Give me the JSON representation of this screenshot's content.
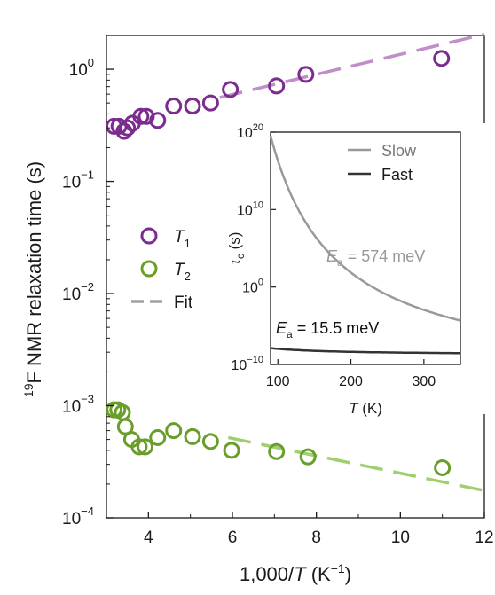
{
  "chart_data": [
    {
      "type": "scatter",
      "xlabel_parts": [
        "1,000/",
        "T",
        " (K",
        "−1",
        ")"
      ],
      "ylabel_parts": [
        "19",
        "F NMR relaxation time (s)"
      ],
      "x_range": [
        3,
        12
      ],
      "y_range": [
        0.0001,
        2
      ],
      "y_scale": "log",
      "x_ticks": [
        4,
        6,
        8,
        10,
        12
      ],
      "x_tick_labels": [
        "4",
        "6",
        "8",
        "10",
        "12"
      ],
      "y_ticks": [
        {
          "value": 1,
          "base": "10",
          "exp": "0"
        },
        {
          "value": 0.1,
          "base": "10",
          "exp": "−1"
        },
        {
          "value": 0.01,
          "base": "10",
          "exp": "−2"
        },
        {
          "value": 0.001,
          "base": "10",
          "exp": "−3"
        },
        {
          "value": 0.0001,
          "base": "10",
          "exp": "−4"
        }
      ],
      "legend": {
        "placement": "middle-left",
        "entries": [
          {
            "label": "T",
            "sub": "1",
            "color": "#7b2d8e",
            "marker": "circle"
          },
          {
            "label": "T",
            "sub": "2",
            "color": "#6a9e2a",
            "marker": "circle"
          },
          {
            "label": "Fit",
            "color": "#a0a0a0",
            "marker": "dashed-line"
          }
        ]
      },
      "series": [
        {
          "marker_color": "#7b2d8e",
          "points": [
            [
              3.18,
              0.31
            ],
            [
              3.3,
              0.31
            ],
            [
              3.42,
              0.28
            ],
            [
              3.5,
              0.3
            ],
            [
              3.62,
              0.33
            ],
            [
              3.82,
              0.38
            ],
            [
              3.95,
              0.38
            ],
            [
              4.22,
              0.35
            ],
            [
              4.6,
              0.47
            ],
            [
              5.05,
              0.47
            ],
            [
              5.48,
              0.5
            ],
            [
              5.95,
              0.66
            ],
            [
              7.05,
              0.71
            ],
            [
              7.75,
              0.9
            ],
            [
              10.98,
              1.25
            ]
          ],
          "fit": {
            "color": "#c08fc8",
            "x": [
              5.7,
              12
            ],
            "y": [
              0.56,
              2.05
            ]
          }
        },
        {
          "marker_color": "#6a9e2a",
          "points": [
            [
              3.18,
              0.00092
            ],
            [
              3.27,
              0.00092
            ],
            [
              3.38,
              0.00087
            ],
            [
              3.45,
              0.00065
            ],
            [
              3.6,
              0.0005
            ],
            [
              3.78,
              0.00043
            ],
            [
              3.92,
              0.00043
            ],
            [
              4.22,
              0.00052
            ],
            [
              4.6,
              0.0006
            ],
            [
              5.05,
              0.00053
            ],
            [
              5.48,
              0.00048
            ],
            [
              5.98,
              0.0004
            ],
            [
              7.05,
              0.00039
            ],
            [
              7.8,
              0.00035
            ],
            [
              11.0,
              0.00028
            ]
          ],
          "fit": {
            "color": "#9fcf6f",
            "x": [
              5.9,
              12
            ],
            "y": [
              0.00052,
              0.000175
            ]
          }
        }
      ]
    },
    {
      "type": "line",
      "inset": true,
      "xlabel_parts": [
        "T",
        " (K)"
      ],
      "ylabel_parts": [
        "τ",
        "c",
        " (s)"
      ],
      "x_range": [
        90,
        350
      ],
      "y_range": [
        1e-10,
        1e+20
      ],
      "y_scale": "log",
      "x_ticks": [
        100,
        200,
        300
      ],
      "x_tick_labels": [
        "100",
        "200",
        "300"
      ],
      "y_ticks": [
        {
          "value": 1e+20,
          "base": "10",
          "exp": "20"
        },
        {
          "value": 10000000000.0,
          "base": "10",
          "exp": "10"
        },
        {
          "value": 1,
          "base": "10",
          "exp": "0"
        },
        {
          "value": 1e-10,
          "base": "10",
          "exp": "−10"
        }
      ],
      "legend": {
        "placement": "top-right",
        "entries": [
          {
            "label": "Slow",
            "color": "#999999"
          },
          {
            "label": "Fast",
            "color": "#333333"
          }
        ]
      },
      "series": [
        {
          "color": "#999999",
          "log10_tau0": -12.6,
          "Ea_meV": 574
        },
        {
          "color": "#333333",
          "log10_tau0": -8.76,
          "Ea_meV": 15.5
        }
      ],
      "annotations": [
        {
          "parts": [
            "E",
            "a",
            " = 574 meV"
          ],
          "color": "#999999"
        },
        {
          "parts": [
            "E",
            "a",
            " = 15.5 meV"
          ],
          "color": "#111111"
        }
      ]
    }
  ]
}
